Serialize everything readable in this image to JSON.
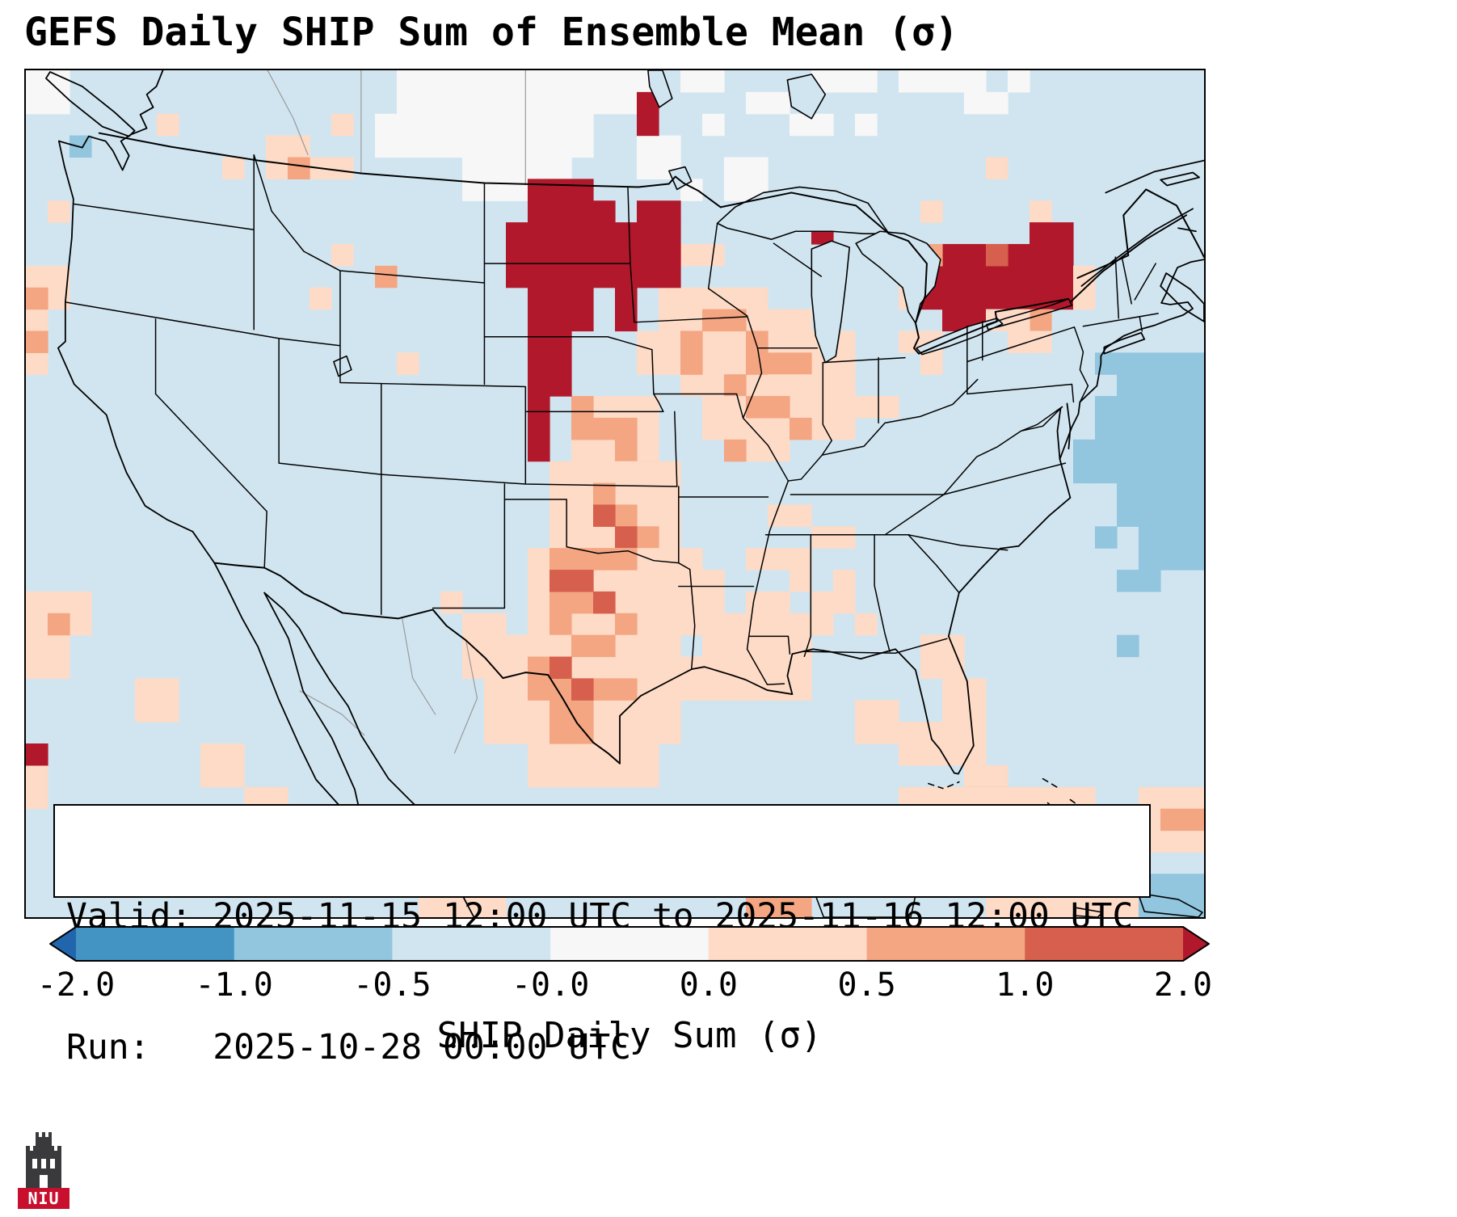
{
  "title": "GEFS Daily SHIP Sum of Ensemble Mean (σ)",
  "info_box": {
    "line1": "Valid: 2025-11-15 12:00 UTC to 2025-11-16 12:00 UTC",
    "line2": "Run:   2025-10-28 00:00 UTC"
  },
  "colorbar": {
    "label": "SHIP Daily Sum (σ)",
    "tick_labels": [
      "-2.0",
      "-1.0",
      "-0.5",
      "-0.0",
      "0.0",
      "0.5",
      "1.0",
      "2.0"
    ],
    "boundaries": [
      -2.0,
      -1.0,
      -0.5,
      -0.0,
      0.0,
      0.5,
      1.0,
      2.0
    ],
    "segment_colors": [
      "#4393c3",
      "#92c5de",
      "#d1e5f0",
      "#f7f7f7",
      "#fddbc7",
      "#f4a582",
      "#d6604d"
    ],
    "under_color": "#2166ac",
    "over_color": "#b2182b",
    "extend": "both",
    "orientation": "horizontal"
  },
  "logo": {
    "text": "NIU",
    "color": "#c8102e"
  },
  "chart_data": {
    "type": "heatmap",
    "title": "GEFS Daily SHIP Sum of Ensemble Mean (σ)",
    "valid": "2025-11-15 12:00 UTC to 2025-11-16 12:00 UTC",
    "run": "2025-10-28 00:00 UTC",
    "colorbar_label": "SHIP Daily Sum (σ)",
    "region": "CONUS with southern Canada, northern Mexico, Cuba",
    "grid": {
      "cols": 54,
      "rows": 39
    },
    "base": "lb",
    "palette_values": {
      "db": "< -2.0",
      "b": "-2.0 to -1.0",
      "mb": "-1.0 to -0.5",
      "lb": "-0.5 to -0.0",
      "w": "about 0.0",
      "lo": "0.0 to 0.5",
      "s": "0.5 to 1.0",
      "r": "1.0 to 2.0",
      "dr": "> 2.0"
    },
    "palette_colors": {
      "db": "#2166ac",
      "b": "#4393c3",
      "mb": "#92c5de",
      "lb": "#d1e5f0",
      "w": "#f7f7f7",
      "lo": "#fddbc7",
      "s": "#f4a582",
      "r": "#d6604d",
      "dr": "#b2182b"
    },
    "hotspots": [
      {
        "area": "western/central North Dakota into South Dakota and NE Nebraska",
        "value": "> 2.0"
      },
      {
        "area": "eastern North Dakota / western Minnesota",
        "value": "> 2.0"
      },
      {
        "area": "western New York south of Lake Ontario",
        "value": "> 2.0"
      },
      {
        "area": "eastern Lake Ontario / southern Ontario-Quebec",
        "value": "> 2.0"
      },
      {
        "area": "central plains corridor Nebraska-Kansas-Oklahoma-Texas",
        "value": "0.5 to 2.0"
      },
      {
        "area": "broad Texas, Gulf states and mid-Mississippi valley",
        "value": "0.0 to 0.5"
      },
      {
        "area": "Cuba / northern Caribbean band",
        "value": "0.5 to 1.0"
      },
      {
        "area": "western Atlantic offshore",
        "value": "-1.0 to -0.5"
      },
      {
        "area": "northern plains / south-central Canada",
        "value": "near 0.0"
      },
      {
        "area": "most remaining background",
        "value": "-0.5 to -0.0"
      }
    ],
    "cells": [
      [
        0,
        0,
        2,
        2,
        "w"
      ],
      [
        17,
        0,
        9,
        2,
        "w"
      ],
      [
        26,
        0,
        3,
        2,
        "w"
      ],
      [
        30,
        0,
        2,
        1,
        "w"
      ],
      [
        33,
        1,
        2,
        1,
        "w"
      ],
      [
        36,
        0,
        3,
        1,
        "w"
      ],
      [
        40,
        0,
        2,
        1,
        "w"
      ],
      [
        42,
        0,
        2,
        1,
        "w"
      ],
      [
        43,
        1,
        2,
        1,
        "w"
      ],
      [
        45,
        0,
        1,
        1,
        "w"
      ],
      [
        16,
        2,
        10,
        2,
        "w"
      ],
      [
        31,
        2,
        1,
        1,
        "w"
      ],
      [
        35,
        2,
        2,
        1,
        "w"
      ],
      [
        38,
        2,
        1,
        1,
        "w"
      ],
      [
        28,
        3,
        2,
        2,
        "w"
      ],
      [
        20,
        4,
        5,
        2,
        "w"
      ],
      [
        32,
        4,
        2,
        2,
        "w"
      ],
      [
        30,
        5,
        1,
        1,
        "w"
      ],
      [
        11,
        3,
        2,
        2,
        "lo"
      ],
      [
        13,
        4,
        2,
        1,
        "lo"
      ],
      [
        14,
        2,
        1,
        1,
        "lo"
      ],
      [
        12,
        4,
        1,
        1,
        "s"
      ],
      [
        6,
        2,
        1,
        1,
        "lo"
      ],
      [
        9,
        4,
        1,
        1,
        "lo"
      ],
      [
        2,
        3,
        1,
        1,
        "mb"
      ],
      [
        1,
        6,
        1,
        1,
        "lo"
      ],
      [
        14,
        8,
        1,
        1,
        "lo"
      ],
      [
        16,
        9,
        1,
        1,
        "s"
      ],
      [
        13,
        10,
        1,
        1,
        "lo"
      ],
      [
        17,
        13,
        1,
        1,
        "lo"
      ],
      [
        0,
        9,
        2,
        2,
        "lo"
      ],
      [
        0,
        11,
        1,
        3,
        "lo"
      ],
      [
        0,
        10,
        1,
        1,
        "s"
      ],
      [
        0,
        12,
        1,
        1,
        "s"
      ],
      [
        0,
        24,
        3,
        2,
        "lo"
      ],
      [
        0,
        26,
        2,
        2,
        "lo"
      ],
      [
        1,
        25,
        1,
        1,
        "s"
      ],
      [
        0,
        32,
        1,
        2,
        "lo"
      ],
      [
        8,
        31,
        2,
        2,
        "lo"
      ],
      [
        10,
        33,
        2,
        1,
        "lo"
      ],
      [
        5,
        28,
        2,
        2,
        "lo"
      ],
      [
        30,
        8,
        2,
        1,
        "lo"
      ],
      [
        29,
        10,
        3,
        2,
        "lo"
      ],
      [
        28,
        12,
        3,
        2,
        "lo"
      ],
      [
        32,
        10,
        2,
        2,
        "lo"
      ],
      [
        31,
        12,
        4,
        2,
        "lo"
      ],
      [
        34,
        11,
        2,
        2,
        "lo"
      ],
      [
        30,
        14,
        4,
        1,
        "lo"
      ],
      [
        33,
        13,
        3,
        2,
        "lo"
      ],
      [
        36,
        12,
        2,
        2,
        "lo"
      ],
      [
        31,
        11,
        2,
        1,
        "s"
      ],
      [
        33,
        12,
        1,
        2,
        "s"
      ],
      [
        30,
        12,
        1,
        2,
        "s"
      ],
      [
        34,
        13,
        2,
        1,
        "s"
      ],
      [
        32,
        14,
        1,
        1,
        "s"
      ],
      [
        31,
        15,
        3,
        2,
        "lo"
      ],
      [
        34,
        14,
        3,
        2,
        "lo"
      ],
      [
        33,
        16,
        2,
        2,
        "lo"
      ],
      [
        36,
        15,
        2,
        2,
        "lo"
      ],
      [
        33,
        15,
        2,
        1,
        "s"
      ],
      [
        35,
        16,
        1,
        1,
        "s"
      ],
      [
        32,
        17,
        1,
        1,
        "s"
      ],
      [
        37,
        13,
        1,
        2,
        "lo"
      ],
      [
        40,
        12,
        2,
        1,
        "lo"
      ],
      [
        41,
        13,
        1,
        1,
        "lo"
      ],
      [
        38,
        15,
        2,
        1,
        "lo"
      ],
      [
        25,
        15,
        4,
        4,
        "lo"
      ],
      [
        25,
        15,
        1,
        2,
        "s"
      ],
      [
        26,
        16,
        2,
        1,
        "s"
      ],
      [
        27,
        17,
        1,
        2,
        "s"
      ],
      [
        28,
        18,
        1,
        1,
        "s"
      ],
      [
        24,
        18,
        6,
        4,
        "lo"
      ],
      [
        26,
        19,
        1,
        2,
        "s"
      ],
      [
        27,
        20,
        1,
        2,
        "s"
      ],
      [
        28,
        21,
        1,
        1,
        "s"
      ],
      [
        26,
        20,
        1,
        1,
        "r"
      ],
      [
        27,
        21,
        1,
        1,
        "r"
      ],
      [
        23,
        22,
        8,
        4,
        "lo"
      ],
      [
        24,
        22,
        2,
        2,
        "s"
      ],
      [
        26,
        22,
        2,
        1,
        "s"
      ],
      [
        25,
        24,
        2,
        1,
        "s"
      ],
      [
        24,
        24,
        1,
        2,
        "s"
      ],
      [
        27,
        25,
        1,
        1,
        "s"
      ],
      [
        24,
        23,
        1,
        1,
        "r"
      ],
      [
        25,
        23,
        1,
        1,
        "r"
      ],
      [
        26,
        24,
        1,
        1,
        "r"
      ],
      [
        21,
        26,
        9,
        5,
        "lo"
      ],
      [
        23,
        31,
        6,
        2,
        "lo"
      ],
      [
        25,
        26,
        2,
        1,
        "s"
      ],
      [
        23,
        27,
        2,
        2,
        "s"
      ],
      [
        24,
        28,
        2,
        2,
        "s"
      ],
      [
        26,
        28,
        2,
        1,
        "s"
      ],
      [
        24,
        30,
        2,
        1,
        "s"
      ],
      [
        24,
        27,
        1,
        1,
        "r"
      ],
      [
        25,
        28,
        1,
        1,
        "r"
      ],
      [
        20,
        25,
        2,
        3,
        "lo"
      ],
      [
        19,
        24,
        1,
        1,
        "lo"
      ],
      [
        30,
        23,
        2,
        2,
        "lo"
      ],
      [
        31,
        25,
        3,
        2,
        "lo"
      ],
      [
        33,
        24,
        2,
        1,
        "lo"
      ],
      [
        34,
        25,
        2,
        2,
        "lo"
      ],
      [
        30,
        27,
        3,
        2,
        "lo"
      ],
      [
        33,
        27,
        2,
        2,
        "lo"
      ],
      [
        33,
        28,
        3,
        1,
        "lo"
      ],
      [
        35,
        26,
        1,
        2,
        "lo"
      ],
      [
        36,
        24,
        1,
        2,
        "lo"
      ],
      [
        34,
        20,
        2,
        1,
        "lo"
      ],
      [
        36,
        21,
        2,
        1,
        "lo"
      ],
      [
        33,
        22,
        2,
        1,
        "lo"
      ],
      [
        35,
        22,
        1,
        2,
        "lo"
      ],
      [
        37,
        23,
        1,
        2,
        "lo"
      ],
      [
        38,
        25,
        1,
        1,
        "lo"
      ],
      [
        41,
        26,
        2,
        2,
        "lo"
      ],
      [
        42,
        28,
        2,
        2,
        "lo"
      ],
      [
        42,
        30,
        2,
        2,
        "lo"
      ],
      [
        43,
        32,
        2,
        1,
        "lo"
      ],
      [
        43,
        33,
        2,
        1,
        "s"
      ],
      [
        38,
        29,
        2,
        2,
        "lo"
      ],
      [
        40,
        30,
        2,
        2,
        "lo"
      ],
      [
        40,
        33,
        5,
        1,
        "lo"
      ],
      [
        45,
        33,
        4,
        2,
        "lo"
      ],
      [
        41,
        34,
        4,
        2,
        "s"
      ],
      [
        45,
        34,
        3,
        1,
        "s"
      ],
      [
        44,
        35,
        2,
        2,
        "s"
      ],
      [
        43,
        35,
        1,
        1,
        "r"
      ],
      [
        40,
        36,
        4,
        2,
        "lo"
      ],
      [
        44,
        37,
        4,
        2,
        "lo"
      ],
      [
        48,
        34,
        3,
        2,
        "lo"
      ],
      [
        47,
        36,
        4,
        3,
        "lo"
      ],
      [
        51,
        33,
        3,
        3,
        "lo"
      ],
      [
        52,
        34,
        2,
        1,
        "s"
      ],
      [
        51,
        37,
        3,
        2,
        "mb"
      ],
      [
        34,
        34,
        4,
        3,
        "lo"
      ],
      [
        38,
        35,
        3,
        3,
        "lo"
      ],
      [
        33,
        37,
        3,
        2,
        "s"
      ],
      [
        18,
        37,
        2,
        2,
        "lo"
      ],
      [
        20,
        38,
        2,
        1,
        "lo"
      ],
      [
        50,
        13,
        4,
        2,
        "mb"
      ],
      [
        49,
        15,
        5,
        4,
        "mb"
      ],
      [
        50,
        19,
        4,
        2,
        "mb"
      ],
      [
        51,
        21,
        3,
        2,
        "mb"
      ],
      [
        49,
        13,
        1,
        1,
        "mb"
      ],
      [
        48,
        17,
        1,
        2,
        "mb"
      ],
      [
        49,
        21,
        1,
        1,
        "mb"
      ],
      [
        50,
        23,
        2,
        1,
        "mb"
      ],
      [
        50,
        26,
        1,
        1,
        "mb"
      ],
      [
        44,
        4,
        1,
        1,
        "lo"
      ],
      [
        46,
        6,
        1,
        1,
        "lo"
      ],
      [
        41,
        6,
        1,
        1,
        "lo"
      ],
      [
        23,
        5,
        3,
        7,
        "dr"
      ],
      [
        26,
        6,
        1,
        4,
        "dr"
      ],
      [
        22,
        7,
        1,
        3,
        "dr"
      ],
      [
        23,
        12,
        2,
        3,
        "dr"
      ],
      [
        23,
        15,
        1,
        3,
        "dr"
      ],
      [
        28,
        1,
        1,
        2,
        "dr"
      ],
      [
        27,
        7,
        3,
        3,
        "dr"
      ],
      [
        28,
        6,
        2,
        1,
        "dr"
      ],
      [
        27,
        10,
        1,
        2,
        "dr"
      ],
      [
        36,
        7,
        1,
        1,
        "dr"
      ],
      [
        0,
        31,
        1,
        1,
        "dr"
      ],
      [
        42,
        8,
        3,
        3,
        "dr"
      ],
      [
        41,
        9,
        1,
        2,
        "dr"
      ],
      [
        42,
        11,
        2,
        1,
        "dr"
      ],
      [
        45,
        8,
        3,
        3,
        "dr"
      ],
      [
        46,
        7,
        2,
        1,
        "dr"
      ],
      [
        44,
        8,
        1,
        1,
        "r"
      ],
      [
        41,
        8,
        1,
        1,
        "s"
      ],
      [
        45,
        11,
        2,
        1,
        "s"
      ],
      [
        44,
        11,
        2,
        1,
        "lo"
      ],
      [
        48,
        9,
        1,
        2,
        "lo"
      ],
      [
        40,
        9,
        1,
        2,
        "lo"
      ],
      [
        45,
        12,
        2,
        1,
        "lo"
      ]
    ]
  }
}
